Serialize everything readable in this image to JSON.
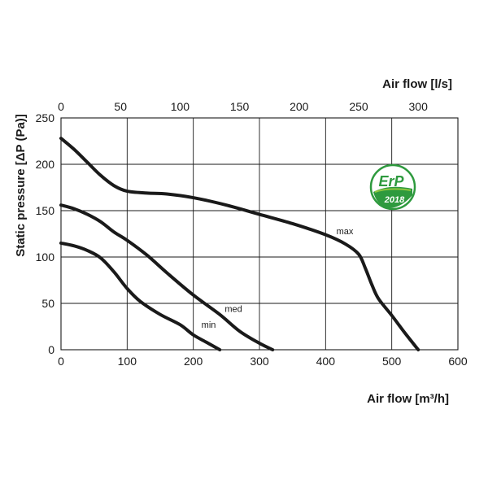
{
  "chart_data": {
    "type": "line",
    "xlabel": "Air flow [m³/h]",
    "xlabel_top": "Air flow [l/s]",
    "ylabel": "Static pressure [ΔP (Pa)]",
    "xlim": [
      0,
      600
    ],
    "ylim": [
      0,
      250
    ],
    "xlim_top": [
      0,
      333.33
    ],
    "x_ticks": [
      0,
      100,
      200,
      300,
      400,
      500,
      600
    ],
    "x_ticks_top": [
      0,
      50,
      100,
      150,
      200,
      250,
      300
    ],
    "y_ticks": [
      0,
      50,
      100,
      150,
      200,
      250
    ],
    "grid": true,
    "series": [
      {
        "name": "max",
        "x": [
          0,
          20,
          40,
          60,
          80,
          100,
          130,
          160,
          200,
          250,
          300,
          350,
          400,
          430,
          450,
          460,
          470,
          480,
          500,
          520,
          540
        ],
        "y": [
          228,
          216,
          202,
          188,
          177,
          171,
          169,
          168,
          164,
          156,
          146,
          136,
          124,
          114,
          103,
          88,
          70,
          55,
          37,
          18,
          0
        ]
      },
      {
        "name": "med",
        "x": [
          0,
          20,
          40,
          60,
          80,
          100,
          130,
          160,
          200,
          240,
          270,
          300,
          320
        ],
        "y": [
          156,
          152,
          146,
          138,
          127,
          118,
          102,
          83,
          59,
          38,
          20,
          7,
          0
        ]
      },
      {
        "name": "min",
        "x": [
          0,
          20,
          40,
          60,
          80,
          100,
          120,
          150,
          180,
          200,
          220,
          240
        ],
        "y": [
          115,
          112,
          107,
          99,
          84,
          66,
          52,
          38,
          27,
          16,
          8,
          0
        ]
      }
    ]
  },
  "badge": {
    "line1": "ErP",
    "line2": "2018",
    "colors": {
      "green": "#2e9a3e",
      "light_green": "#8dc63f",
      "white": "#ffffff"
    }
  },
  "colors": {
    "curve": "#1a1a1a",
    "grid": "#1a1a1a"
  }
}
